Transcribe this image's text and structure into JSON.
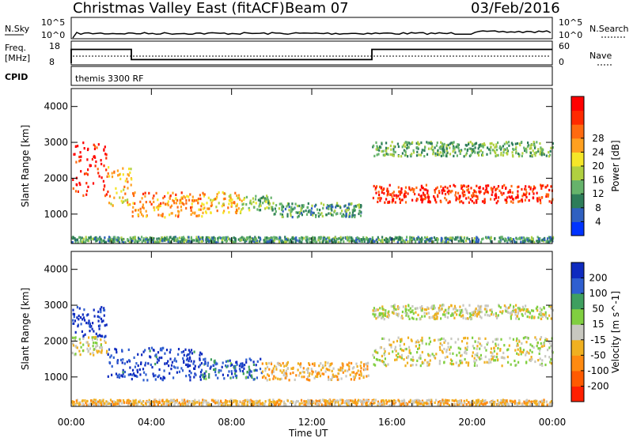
{
  "header": {
    "radar": "Christmas Valley East (fitACF)",
    "beam": "Beam 07",
    "date": "03/Feb/2016"
  },
  "strips": {
    "nsky_label": "N.Sky",
    "nsearch_label": "N.Search",
    "nsky_ticks": [
      "10^5",
      "10^0"
    ],
    "nsearch_ticks": [
      "10^5",
      "10^0"
    ],
    "freq_label_1": "Freq.",
    "freq_label_2": "[MHz]",
    "freq_ticks": [
      "18",
      "8"
    ],
    "nave_ticks": [
      "60",
      "0"
    ],
    "nave_label": "Nave",
    "cpid_label": "CPID",
    "cpid_value": "themis 3300 RF"
  },
  "chart_data": [
    {
      "type": "line",
      "name": "frequency",
      "ylabel": "Freq. [MHz]",
      "ylim": [
        8,
        18
      ],
      "segments": [
        {
          "t_start": "00:00",
          "t_end": "03:00",
          "value": 14.5
        },
        {
          "t_start": "03:00",
          "t_end": "15:00",
          "value": 10.2
        },
        {
          "t_start": "15:00",
          "t_end": "24:00",
          "value": 14.5
        }
      ]
    },
    {
      "type": "heatmap",
      "name": "power",
      "ylabel": "Slant Range [km]",
      "xlabel": "Time UT",
      "x_ticks": [
        "00:00",
        "04:00",
        "08:00",
        "12:00",
        "16:00",
        "20:00",
        "00:00"
      ],
      "y_ticks": [
        "1000",
        "2000",
        "3000",
        "4000"
      ],
      "ylim": [
        180,
        4500
      ],
      "colorbar": {
        "label": "Power [dB]",
        "ticks": [
          "4",
          "8",
          "12",
          "16",
          "20",
          "24",
          "28"
        ],
        "colors": [
          "#0033ff",
          "#3060c0",
          "#2e7d5a",
          "#66b36b",
          "#b0d040",
          "#f5e628",
          "#ffa020",
          "#ff6a10",
          "#ff2a00",
          "#ff0000"
        ]
      },
      "echo_regions": [
        {
          "t0": 0.0,
          "t1": 1.8,
          "r0": 1500,
          "r1": 3000,
          "level": 0.9
        },
        {
          "t0": 1.8,
          "t1": 3.0,
          "r0": 1200,
          "r1": 2300,
          "level": 0.6
        },
        {
          "t0": 3.0,
          "t1": 6.5,
          "r0": 900,
          "r1": 1600,
          "level": 0.7
        },
        {
          "t0": 6.5,
          "t1": 8.5,
          "r0": 1000,
          "r1": 1600,
          "level": 0.6
        },
        {
          "t0": 8.5,
          "t1": 10.0,
          "r0": 1100,
          "r1": 1500,
          "level": 0.4
        },
        {
          "t0": 10.0,
          "t1": 14.5,
          "r0": 900,
          "r1": 1300,
          "level": 0.3
        },
        {
          "t0": 15.0,
          "t1": 24.0,
          "r0": 1300,
          "r1": 1800,
          "level": 0.85
        },
        {
          "t0": 15.0,
          "t1": 24.0,
          "r0": 2600,
          "r1": 3000,
          "level": 0.35
        },
        {
          "t0": 0.0,
          "t1": 24.0,
          "r0": 200,
          "r1": 350,
          "level": 0.3
        }
      ]
    },
    {
      "type": "heatmap",
      "name": "velocity",
      "ylabel": "Slant Range [km]",
      "xlabel": "Time UT",
      "x_ticks": [
        "00:00",
        "04:00",
        "08:00",
        "12:00",
        "16:00",
        "20:00",
        "00:00"
      ],
      "y_ticks": [
        "1000",
        "2000",
        "3000",
        "4000"
      ],
      "ylim": [
        180,
        4500
      ],
      "colorbar": {
        "label": "Velocity [m s^-1]",
        "ticks": [
          "200",
          "100",
          "50",
          "15",
          "-15",
          "-50",
          "-100",
          "-200"
        ],
        "colors": [
          "#0f2bbf",
          "#2f5fd0",
          "#3f9f5f",
          "#80cf40",
          "#c8c8c0",
          "#f0b020",
          "#ff8a10",
          "#ff5a00",
          "#ff2000"
        ]
      },
      "echo_regions": [
        {
          "t0": 0.0,
          "t1": 1.8,
          "r0": 2100,
          "r1": 3000,
          "level": 0.05
        },
        {
          "t0": 0.0,
          "t1": 1.8,
          "r0": 1600,
          "r1": 2100,
          "level": 0.5
        },
        {
          "t0": 1.8,
          "t1": 6.5,
          "r0": 900,
          "r1": 1800,
          "level": 0.08
        },
        {
          "t0": 6.5,
          "t1": 9.5,
          "r0": 900,
          "r1": 1500,
          "level": 0.2
        },
        {
          "t0": 9.5,
          "t1": 14.8,
          "r0": 900,
          "r1": 1400,
          "level": 0.62
        },
        {
          "t0": 15.0,
          "t1": 24.0,
          "r0": 1300,
          "r1": 2100,
          "level": 0.5
        },
        {
          "t0": 15.0,
          "t1": 24.0,
          "r0": 2600,
          "r1": 3000,
          "level": 0.5
        },
        {
          "t0": 0.0,
          "t1": 24.0,
          "r0": 200,
          "r1": 350,
          "level": 0.6
        }
      ]
    }
  ]
}
